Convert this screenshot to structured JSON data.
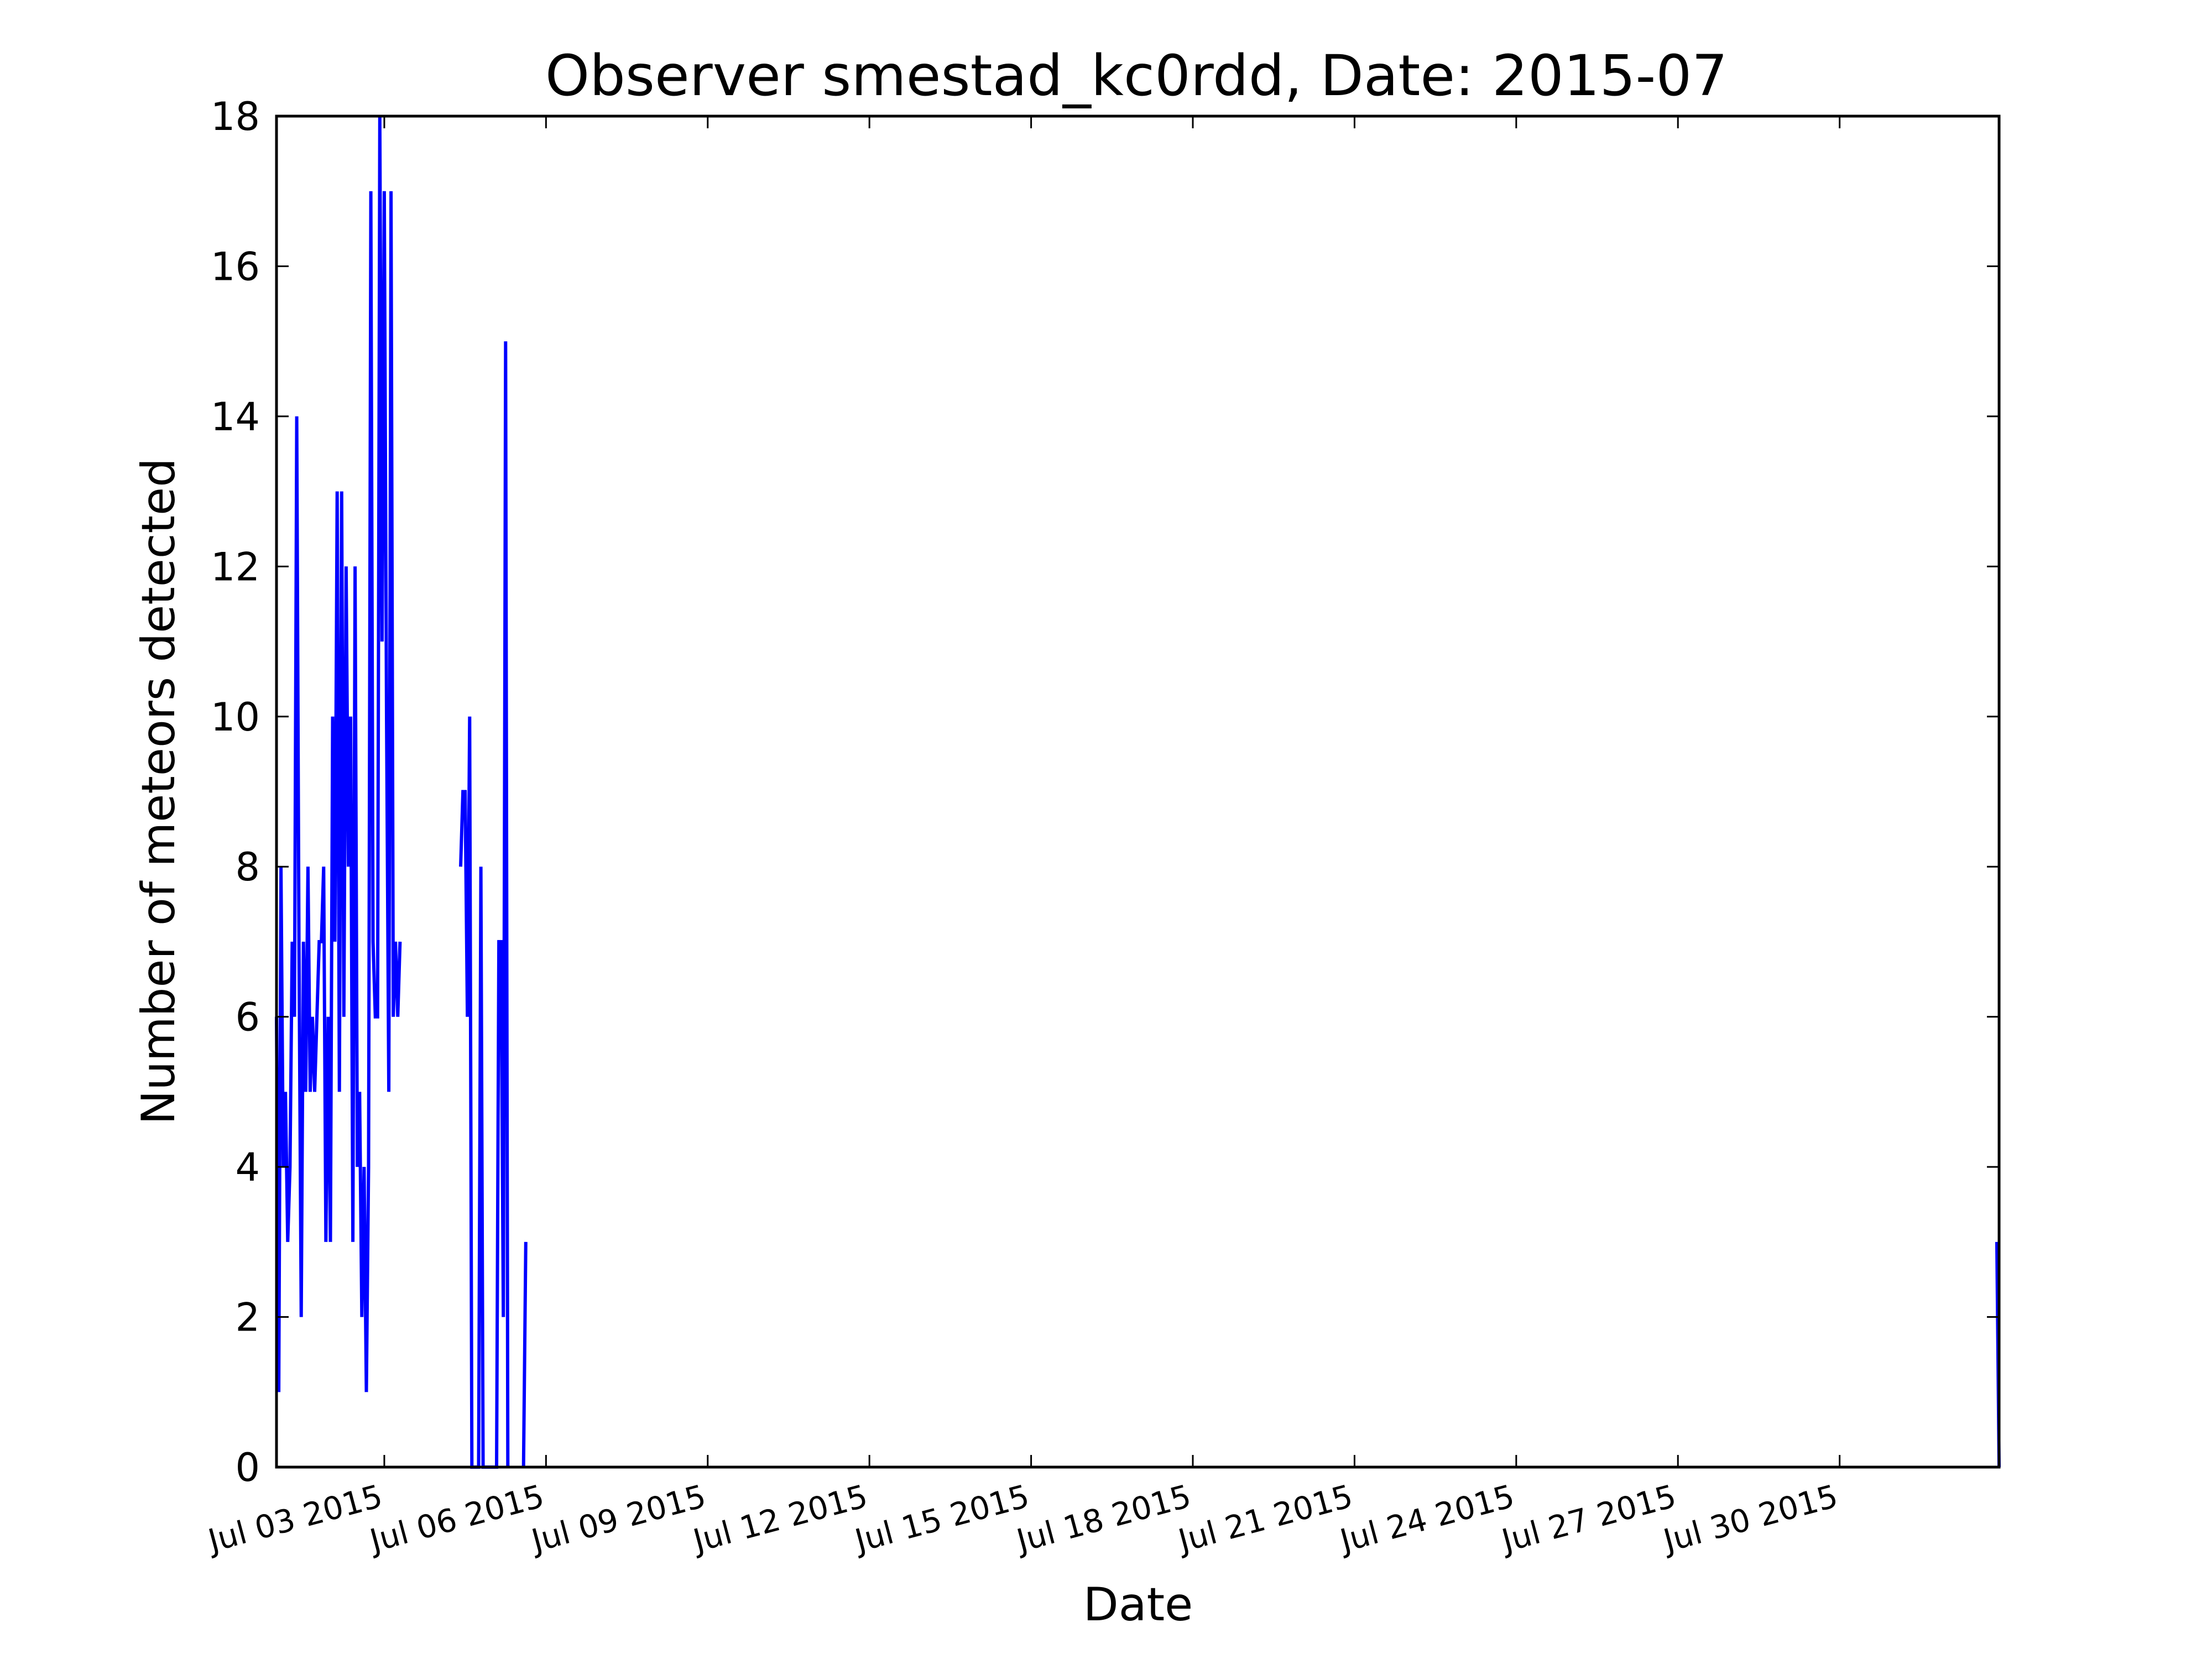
{
  "chart_data": {
    "type": "line",
    "title": "Observer smestad_kc0rdd, Date: 2015-07",
    "xlabel": "Date",
    "ylabel": "Number of meteors detected",
    "xlim": [
      "2015-07-01",
      "2015-08-01 23:00"
    ],
    "ylim": [
      0,
      18
    ],
    "yticks": [
      0,
      2,
      4,
      6,
      8,
      10,
      12,
      14,
      16,
      18
    ],
    "xticks": [
      {
        "date": "2015-07-03",
        "label": "Jul 03 2015"
      },
      {
        "date": "2015-07-06",
        "label": "Jul 06 2015"
      },
      {
        "date": "2015-07-09",
        "label": "Jul 09 2015"
      },
      {
        "date": "2015-07-12",
        "label": "Jul 12 2015"
      },
      {
        "date": "2015-07-15",
        "label": "Jul 15 2015"
      },
      {
        "date": "2015-07-18",
        "label": "Jul 18 2015"
      },
      {
        "date": "2015-07-21",
        "label": "Jul 21 2015"
      },
      {
        "date": "2015-07-24",
        "label": "Jul 24 2015"
      },
      {
        "date": "2015-07-27",
        "label": "Jul 27 2015"
      },
      {
        "date": "2015-07-30",
        "label": "Jul 30 2015"
      }
    ],
    "grid": false,
    "colors": {
      "line": "#0000ff",
      "axes": "#000000",
      "background": "#ffffff"
    },
    "series": [
      {
        "segments": [
          [
            [
              "2015-07-01 00:00",
              6
            ],
            [
              "2015-07-01 01:00",
              1
            ],
            [
              "2015-07-01 02:00",
              8
            ],
            [
              "2015-07-01 03:00",
              4
            ],
            [
              "2015-07-01 04:00",
              5
            ],
            [
              "2015-07-01 05:00",
              3
            ],
            [
              "2015-07-01 06:00",
              4
            ],
            [
              "2015-07-01 07:00",
              7
            ],
            [
              "2015-07-01 08:00",
              6
            ],
            [
              "2015-07-01 09:00",
              14
            ],
            [
              "2015-07-01 10:00",
              7
            ],
            [
              "2015-07-01 11:00",
              2
            ],
            [
              "2015-07-01 12:00",
              7
            ],
            [
              "2015-07-01 13:00",
              5
            ],
            [
              "2015-07-01 14:00",
              8
            ],
            [
              "2015-07-01 15:00",
              5
            ],
            [
              "2015-07-01 16:00",
              6
            ],
            [
              "2015-07-01 17:00",
              5
            ],
            [
              "2015-07-01 18:00",
              6
            ],
            [
              "2015-07-01 19:00",
              7
            ],
            [
              "2015-07-01 20:00",
              7
            ],
            [
              "2015-07-01 21:00",
              8
            ],
            [
              "2015-07-01 22:00",
              3
            ],
            [
              "2015-07-01 23:00",
              6
            ],
            [
              "2015-07-02 00:00",
              3
            ],
            [
              "2015-07-02 01:00",
              10
            ],
            [
              "2015-07-02 02:00",
              7
            ],
            [
              "2015-07-02 03:00",
              13
            ],
            [
              "2015-07-02 04:00",
              5
            ],
            [
              "2015-07-02 05:00",
              13
            ],
            [
              "2015-07-02 06:00",
              6
            ],
            [
              "2015-07-02 07:00",
              12
            ],
            [
              "2015-07-02 08:00",
              8
            ],
            [
              "2015-07-02 09:00",
              10
            ],
            [
              "2015-07-02 10:00",
              3
            ],
            [
              "2015-07-02 11:00",
              12
            ],
            [
              "2015-07-02 12:00",
              4
            ],
            [
              "2015-07-02 13:00",
              5
            ],
            [
              "2015-07-02 14:00",
              2
            ],
            [
              "2015-07-02 15:00",
              4
            ],
            [
              "2015-07-02 16:00",
              1
            ],
            [
              "2015-07-02 17:00",
              4
            ],
            [
              "2015-07-02 18:00",
              17
            ],
            [
              "2015-07-02 19:00",
              7
            ],
            [
              "2015-07-02 20:00",
              6
            ],
            [
              "2015-07-02 21:00",
              6
            ],
            [
              "2015-07-02 22:00",
              18
            ],
            [
              "2015-07-02 23:00",
              11
            ],
            [
              "2015-07-03 00:00",
              17
            ],
            [
              "2015-07-03 01:00",
              10
            ],
            [
              "2015-07-03 02:00",
              5
            ],
            [
              "2015-07-03 03:00",
              17
            ],
            [
              "2015-07-03 04:00",
              6
            ],
            [
              "2015-07-03 05:00",
              7
            ],
            [
              "2015-07-03 06:00",
              6
            ],
            [
              "2015-07-03 07:00",
              7
            ]
          ],
          [
            [
              "2015-07-04 10:00",
              8
            ],
            [
              "2015-07-04 11:00",
              9
            ],
            [
              "2015-07-04 12:00",
              9
            ],
            [
              "2015-07-04 13:00",
              6
            ],
            [
              "2015-07-04 14:00",
              10
            ],
            [
              "2015-07-04 15:00",
              0
            ],
            [
              "2015-07-04 16:00",
              0
            ],
            [
              "2015-07-04 17:00",
              0
            ],
            [
              "2015-07-04 18:00",
              0
            ],
            [
              "2015-07-04 19:00",
              8
            ],
            [
              "2015-07-04 20:00",
              0
            ],
            [
              "2015-07-04 21:00",
              0
            ],
            [
              "2015-07-04 22:00",
              0
            ],
            [
              "2015-07-04 23:00",
              0
            ],
            [
              "2015-07-05 00:00",
              0
            ],
            [
              "2015-07-05 01:00",
              0
            ],
            [
              "2015-07-05 02:00",
              0
            ],
            [
              "2015-07-05 03:00",
              7
            ],
            [
              "2015-07-05 04:00",
              7
            ],
            [
              "2015-07-05 05:00",
              2
            ],
            [
              "2015-07-05 06:00",
              15
            ],
            [
              "2015-07-05 07:00",
              0
            ]
          ],
          [
            [
              "2015-07-05 14:00",
              0
            ],
            [
              "2015-07-05 15:00",
              3
            ]
          ],
          [
            [
              "2015-08-01 22:00",
              3
            ],
            [
              "2015-08-01 23:00",
              0
            ]
          ]
        ]
      }
    ]
  }
}
